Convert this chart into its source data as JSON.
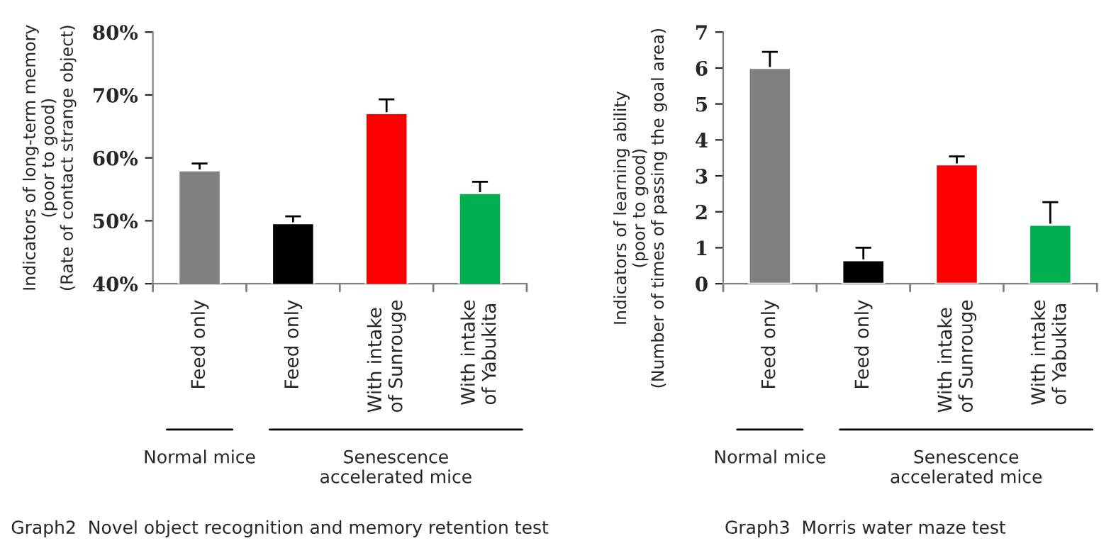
{
  "chart_data": [
    {
      "type": "bar",
      "title": "Graph2  Novel object recognition and memory retention test",
      "ylabel": "Indicators of long-term memory\n(poor to good)\n(Rate of contact strange object)",
      "categories": [
        "Feed only",
        "Feed only",
        "With intake\nof Sunrouge",
        "With intake\nof Yabukita"
      ],
      "values": [
        58.0,
        49.6,
        67.1,
        54.4
      ],
      "errors": [
        1.1,
        1.1,
        2.2,
        1.8
      ],
      "colors": [
        "#808080",
        "#000000",
        "#ff0000",
        "#00b050"
      ],
      "ylim": [
        40,
        80
      ],
      "yticks": [
        {
          "value": 40,
          "label": "40%"
        },
        {
          "value": 50,
          "label": "50%"
        },
        {
          "value": 60,
          "label": "60%"
        },
        {
          "value": 70,
          "label": "70%"
        },
        {
          "value": 80,
          "label": "80%"
        }
      ],
      "annotations": [
        "Normal mice",
        "Senescence\naccelerated mice"
      ]
    },
    {
      "type": "bar",
      "title": "Graph3  Morris water maze test",
      "ylabel": "Indicators of learning ability\n(poor to good)\n(Number of times of passing the goal area)",
      "categories": [
        "Feed only",
        "Feed only",
        "With intake\nof Sunrouge",
        "With intake\nof Yabukita"
      ],
      "values": [
        6.0,
        0.65,
        3.32,
        1.64
      ],
      "errors": [
        0.45,
        0.35,
        0.22,
        0.63
      ],
      "colors": [
        "#808080",
        "#000000",
        "#ff0000",
        "#00b050"
      ],
      "ylim": [
        0,
        7
      ],
      "yticks": [
        0,
        1,
        2,
        3,
        4,
        5,
        6,
        7
      ],
      "annotations": [
        "Normal mice",
        "Senescence\naccelerated mice"
      ]
    }
  ]
}
